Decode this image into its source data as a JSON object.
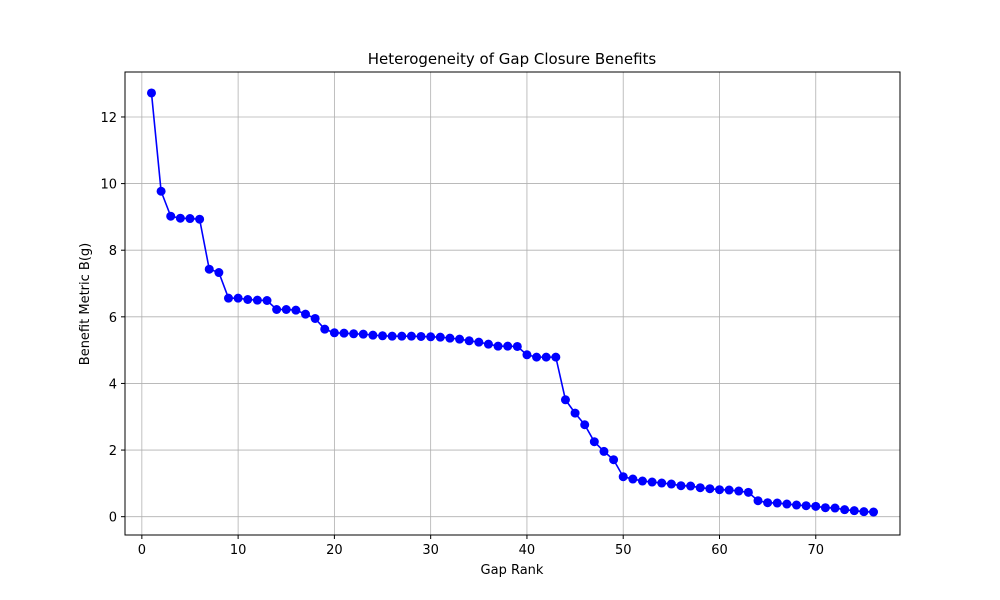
{
  "chart_data": {
    "type": "line",
    "title": "Heterogeneity of Gap Closure Benefits",
    "xlabel": "Gap Rank",
    "ylabel": "Benefit Metric B(g)",
    "xlim": [
      -1.75,
      78.75
    ],
    "ylim": [
      -0.55,
      13.35
    ],
    "xticks": [
      0,
      10,
      20,
      30,
      40,
      50,
      60,
      70
    ],
    "yticks": [
      0,
      2,
      4,
      6,
      8,
      10,
      12
    ],
    "grid": true,
    "series": [
      {
        "color": "#0000ff",
        "marker": "circle",
        "x": [
          1,
          2,
          3,
          4,
          5,
          6,
          7,
          8,
          9,
          10,
          11,
          12,
          13,
          14,
          15,
          16,
          17,
          18,
          19,
          20,
          21,
          22,
          23,
          24,
          25,
          26,
          27,
          28,
          29,
          30,
          31,
          32,
          33,
          34,
          35,
          36,
          37,
          38,
          39,
          40,
          41,
          42,
          43,
          44,
          45,
          46,
          47,
          48,
          49,
          50,
          51,
          52,
          53,
          54,
          55,
          56,
          57,
          58,
          59,
          60,
          61,
          62,
          63,
          64,
          65,
          66,
          67,
          68,
          69,
          70,
          71,
          72,
          73,
          74,
          75,
          76
        ],
        "y": [
          12.72,
          9.77,
          9.02,
          8.96,
          8.95,
          8.93,
          7.43,
          7.33,
          6.56,
          6.56,
          6.52,
          6.5,
          6.49,
          6.22,
          6.22,
          6.2,
          6.08,
          5.95,
          5.63,
          5.52,
          5.51,
          5.49,
          5.48,
          5.45,
          5.43,
          5.42,
          5.42,
          5.42,
          5.41,
          5.4,
          5.39,
          5.36,
          5.33,
          5.28,
          5.24,
          5.18,
          5.12,
          5.12,
          5.11,
          4.86,
          4.79,
          4.79,
          4.79,
          3.51,
          3.11,
          2.76,
          2.25,
          1.96,
          1.71,
          1.2,
          1.13,
          1.07,
          1.04,
          1.01,
          0.98,
          0.93,
          0.92,
          0.87,
          0.84,
          0.81,
          0.8,
          0.77,
          0.73,
          0.48,
          0.42,
          0.41,
          0.38,
          0.35,
          0.33,
          0.31,
          0.27,
          0.26,
          0.21,
          0.18,
          0.15,
          0.14
        ]
      }
    ]
  }
}
